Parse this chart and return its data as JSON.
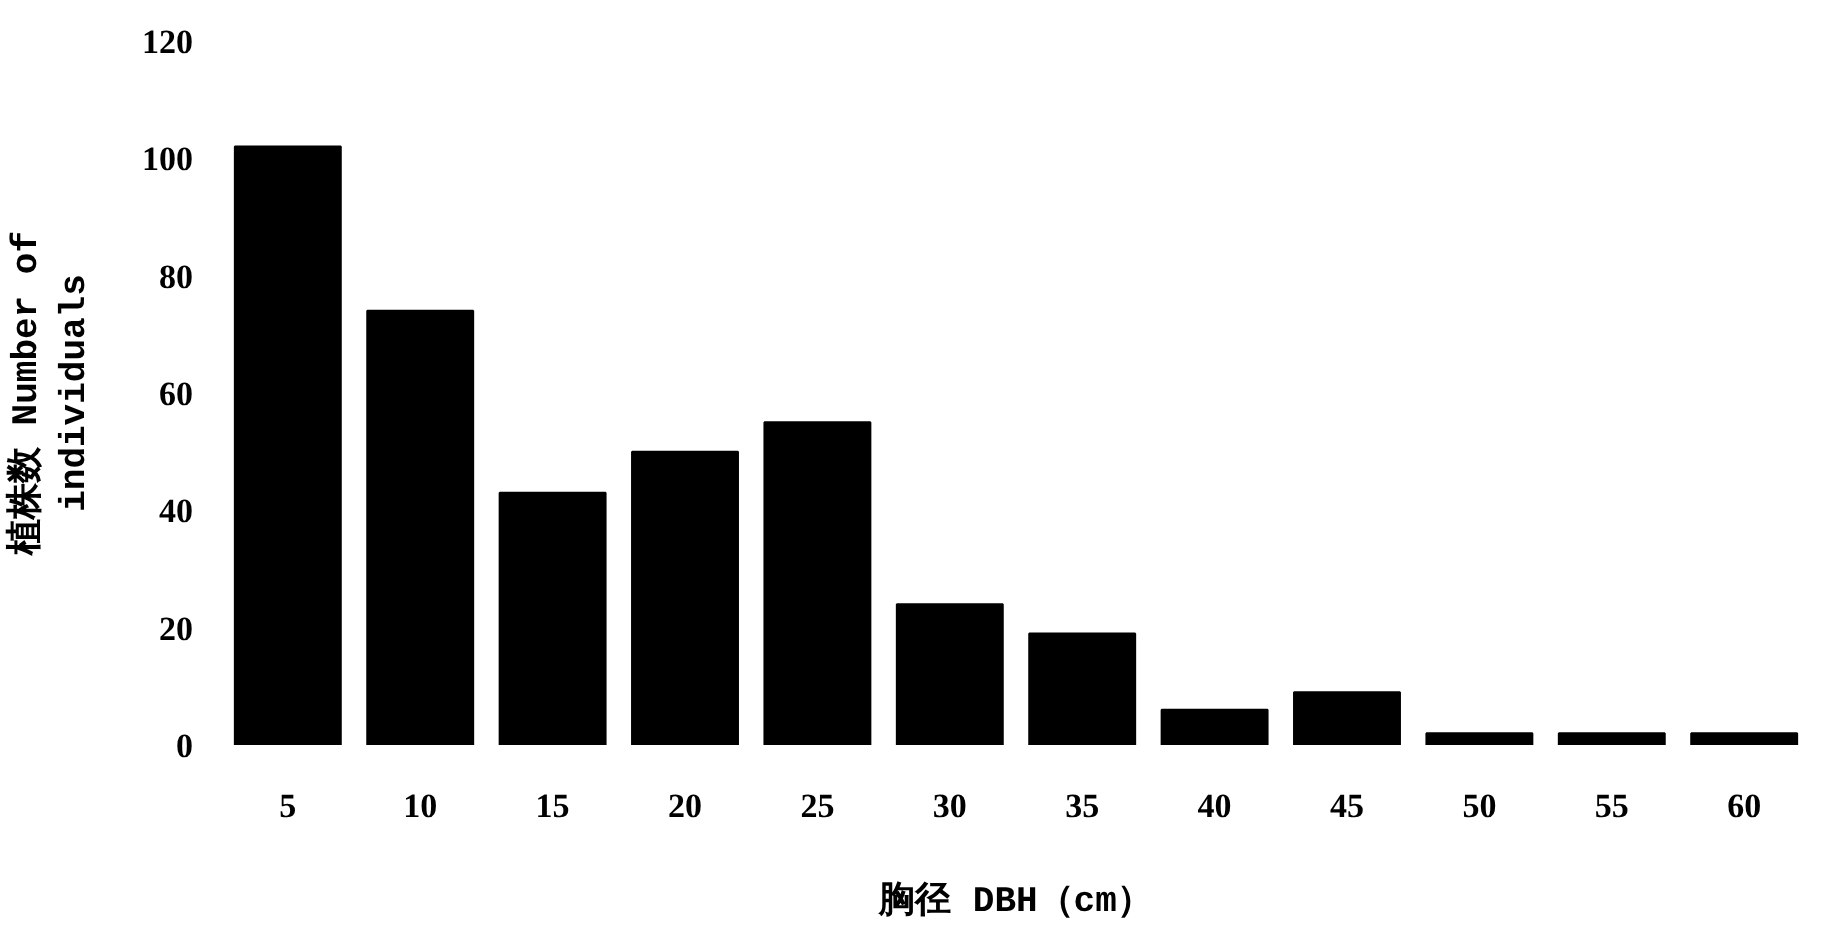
{
  "chart_data": {
    "type": "bar",
    "xlabel": "胸径 DBH（cm）",
    "ylabel": "植株数 Number of\nindividuals",
    "categories": [
      "5",
      "10",
      "15",
      "20",
      "25",
      "30",
      "35",
      "40",
      "45",
      "50",
      "55",
      "60"
    ],
    "values": [
      102,
      74,
      43,
      50,
      55,
      24,
      19,
      6,
      9,
      2,
      2,
      2
    ],
    "color": "#000000",
    "ylim": [
      0,
      120
    ],
    "yticks": [
      0,
      20,
      40,
      60,
      80,
      100,
      120
    ],
    "grid": false
  }
}
